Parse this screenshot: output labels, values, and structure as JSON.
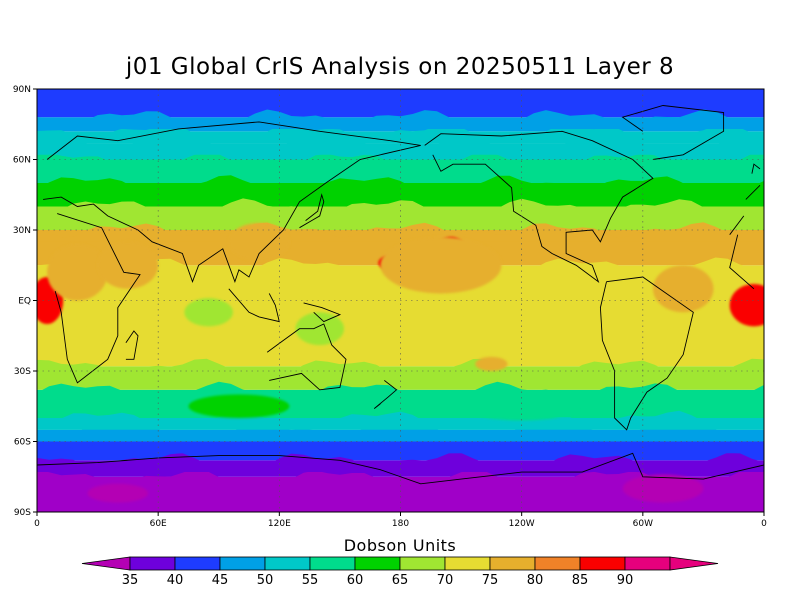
{
  "title": "j01 Global CrIS Analysis on 20250511 Layer 8",
  "units_label": "Dobson Units",
  "lat_ticks": [
    {
      "value": 90,
      "label": "90N"
    },
    {
      "value": 60,
      "label": "60N"
    },
    {
      "value": 30,
      "label": "30N"
    },
    {
      "value": 0,
      "label": "EQ"
    },
    {
      "value": -30,
      "label": "30S"
    },
    {
      "value": -60,
      "label": "60S"
    },
    {
      "value": -90,
      "label": "90S"
    }
  ],
  "lon_ticks": [
    {
      "value": 0,
      "label": "0"
    },
    {
      "value": 60,
      "label": "60E"
    },
    {
      "value": 120,
      "label": "120E"
    },
    {
      "value": 180,
      "label": "180"
    },
    {
      "value": 240,
      "label": "120W"
    },
    {
      "value": 300,
      "label": "60W"
    },
    {
      "value": 360,
      "label": "0"
    }
  ],
  "chart_data": {
    "type": "heatmap",
    "title": "j01 Global CrIS Analysis on 20250511 Layer 8",
    "colorbar_label": "Dobson Units",
    "xlim": [
      0,
      360
    ],
    "ylim": [
      -90,
      90
    ],
    "grid": true,
    "colorbar": [
      {
        "value": 35,
        "color": "#a000c8"
      },
      {
        "value": 40,
        "color": "#6e00dc"
      },
      {
        "value": 45,
        "color": "#1e3cff"
      },
      {
        "value": 50,
        "color": "#00a0e6"
      },
      {
        "value": 55,
        "color": "#00c8c8"
      },
      {
        "value": 60,
        "color": "#00dc8c"
      },
      {
        "value": 65,
        "color": "#00d200"
      },
      {
        "value": 70,
        "color": "#a0e632"
      },
      {
        "value": 75,
        "color": "#e6dc32"
      },
      {
        "value": 80,
        "color": "#e6af2d"
      },
      {
        "value": 85,
        "color": "#f08228"
      },
      {
        "value": 90,
        "color": "#fa0000"
      },
      {
        "value": 95,
        "color": "#e6007d"
      }
    ],
    "zonal_bands": [
      {
        "lat": [
          -90,
          -75
        ],
        "value": 37
      },
      {
        "lat": [
          -75,
          -68
        ],
        "value": 42
      },
      {
        "lat": [
          -68,
          -60
        ],
        "value": 48
      },
      {
        "lat": [
          -60,
          -55
        ],
        "value": 53
      },
      {
        "lat": [
          -55,
          -50
        ],
        "value": 58
      },
      {
        "lat": [
          -50,
          -38
        ],
        "value": 63
      },
      {
        "lat": [
          -38,
          -28
        ],
        "value": 72
      },
      {
        "lat": [
          -28,
          -10
        ],
        "value": 77
      },
      {
        "lat": [
          -10,
          15
        ],
        "value": 78
      },
      {
        "lat": [
          15,
          30
        ],
        "value": 80
      },
      {
        "lat": [
          30,
          40
        ],
        "value": 73
      },
      {
        "lat": [
          40,
          50
        ],
        "value": 68
      },
      {
        "lat": [
          50,
          60
        ],
        "value": 63
      },
      {
        "lat": [
          60,
          67
        ],
        "value": 58
      },
      {
        "lat": [
          67,
          72
        ],
        "value": 55
      },
      {
        "lat": [
          72,
          78
        ],
        "value": 52
      },
      {
        "lat": [
          78,
          90
        ],
        "value": 48
      }
    ],
    "anomalies": [
      {
        "lon": 5,
        "lat": 0,
        "rx": 8,
        "ry": 10,
        "value": 92
      },
      {
        "lon": 355,
        "lat": -2,
        "rx": 12,
        "ry": 9,
        "value": 92
      },
      {
        "lon": 205,
        "lat": 22,
        "rx": 7,
        "ry": 5,
        "value": 91
      },
      {
        "lon": 175,
        "lat": 16,
        "rx": 6,
        "ry": 3,
        "value": 91
      },
      {
        "lon": 20,
        "lat": 12,
        "rx": 15,
        "ry": 12,
        "value": 84
      },
      {
        "lon": 45,
        "lat": 15,
        "rx": 15,
        "ry": 10,
        "value": 84
      },
      {
        "lon": 110,
        "lat": 25,
        "rx": 15,
        "ry": 8,
        "value": 84
      },
      {
        "lon": 200,
        "lat": 15,
        "rx": 30,
        "ry": 12,
        "value": 84
      },
      {
        "lon": 320,
        "lat": 5,
        "rx": 15,
        "ry": 10,
        "value": 84
      },
      {
        "lon": 225,
        "lat": -27,
        "rx": 8,
        "ry": 3,
        "value": 84
      },
      {
        "lon": 85,
        "lat": -5,
        "rx": 12,
        "ry": 6,
        "value": 72
      },
      {
        "lon": 140,
        "lat": -12,
        "rx": 12,
        "ry": 7,
        "value": 72
      },
      {
        "lon": 240,
        "lat": -45,
        "rx": 30,
        "ry": 6,
        "value": 62
      },
      {
        "lon": 100,
        "lat": -45,
        "rx": 25,
        "ry": 5,
        "value": 68
      },
      {
        "lon": 310,
        "lat": -80,
        "rx": 20,
        "ry": 6,
        "value": 32
      },
      {
        "lon": 40,
        "lat": -82,
        "rx": 15,
        "ry": 4,
        "value": 32
      }
    ]
  }
}
